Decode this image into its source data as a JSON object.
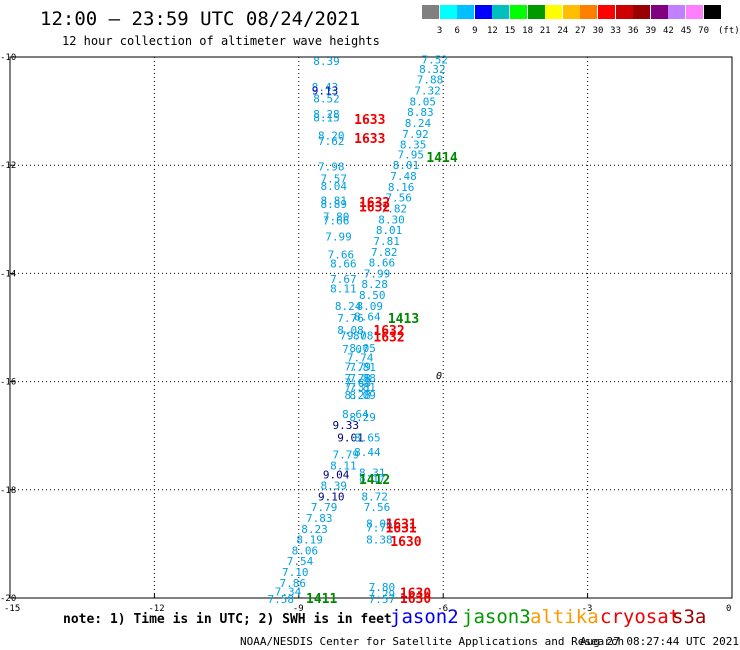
{
  "title": "12:00 – 23:59 UTC 08/24/2021",
  "subtitle": "12 hour collection of altimeter wave heights",
  "legend": {
    "colors": [
      "#808080",
      "#00ffff",
      "#00bfff",
      "#0000ff",
      "#00bfbf",
      "#00ff00",
      "#009900",
      "#ffff00",
      "#ffbf00",
      "#ff8000",
      "#ff0000",
      "#cc0000",
      "#990000",
      "#800080",
      "#c080ff",
      "#ff80ff",
      "#000000"
    ],
    "labels": [
      "3",
      "6",
      "9",
      "12",
      "15",
      "18",
      "21",
      "24",
      "27",
      "30",
      "33",
      "36",
      "39",
      "42",
      "45",
      "70"
    ],
    "unit": "(ft)"
  },
  "axes": {
    "lon_ticks": [
      "-15",
      "-12",
      "-9",
      "-6",
      "-3",
      "0"
    ],
    "lat_ticks": [
      "-10",
      "-12",
      "-14",
      "-16",
      "-18",
      "-20"
    ]
  },
  "symbols": {
    "zero_marker": "0"
  },
  "tracks": [
    {
      "id": "cyan-west",
      "observations": [
        {
          "value": "8.39",
          "lon": -8.7,
          "lat": -10.07,
          "color": "#00a0e0"
        },
        {
          "value": "8.43",
          "lon": -8.73,
          "lat": -10.55,
          "color": "#00a0e0"
        },
        {
          "value": "9.13",
          "lon": -8.73,
          "lat": -10.62,
          "color": "#0000c0"
        },
        {
          "value": "8.52",
          "lon": -8.7,
          "lat": -10.77,
          "color": "#00a0e0"
        },
        {
          "value": "8.28",
          "lon": -8.7,
          "lat": -11.05,
          "color": "#00a0e0"
        },
        {
          "value": "8.15",
          "lon": -8.7,
          "lat": -11.12,
          "color": "#00a0e0"
        },
        {
          "value": "8.20",
          "lon": -8.6,
          "lat": -11.45,
          "color": "#00a0e0"
        },
        {
          "value": "7.62",
          "lon": -8.6,
          "lat": -11.55,
          "color": "#00a0e0"
        },
        {
          "value": "7.98",
          "lon": -8.6,
          "lat": -12.02,
          "color": "#00a0e0"
        },
        {
          "value": "7.57",
          "lon": -8.55,
          "lat": -12.25,
          "color": "#00a0e0"
        },
        {
          "value": "8.04",
          "lon": -8.55,
          "lat": -12.38,
          "color": "#00a0e0"
        },
        {
          "value": "8.81",
          "lon": -8.55,
          "lat": -12.65,
          "color": "#00a0e0"
        },
        {
          "value": "8.89",
          "lon": -8.55,
          "lat": -12.72,
          "color": "#00a0e0"
        },
        {
          "value": "7.80",
          "lon": -8.5,
          "lat": -12.95,
          "color": "#00a0e0"
        },
        {
          "value": "7.66",
          "lon": -8.5,
          "lat": -13.02,
          "color": "#00a0e0"
        },
        {
          "value": "7.99",
          "lon": -8.45,
          "lat": -13.32,
          "color": "#00a0e0"
        },
        {
          "value": "7.66",
          "lon": -8.4,
          "lat": -13.65,
          "color": "#00a0e0"
        },
        {
          "value": "8.66",
          "lon": -8.35,
          "lat": -13.82,
          "color": "#00a0e0"
        },
        {
          "value": "7.67",
          "lon": -8.35,
          "lat": -14.1,
          "color": "#00a0e0"
        },
        {
          "value": "8.11",
          "lon": -8.35,
          "lat": -14.28,
          "color": "#00a0e0"
        },
        {
          "value": "8.24",
          "lon": -8.25,
          "lat": -14.6,
          "color": "#00a0e0"
        },
        {
          "value": "7.76",
          "lon": -8.2,
          "lat": -14.82,
          "color": "#00a0e0"
        },
        {
          "value": "8.08",
          "lon": -8.2,
          "lat": -15.05,
          "color": "#00a0e0"
        },
        {
          "value": "7.87",
          "lon": -8.15,
          "lat": -15.15,
          "color": "#00a0e0"
        },
        {
          "value": "7.07",
          "lon": -8.1,
          "lat": -15.4,
          "color": "#00a0e0"
        },
        {
          "value": "7.79",
          "lon": -8.05,
          "lat": -15.72,
          "color": "#00a0e0"
        },
        {
          "value": "7.78",
          "lon": -8.05,
          "lat": -15.93,
          "color": "#00a0e0"
        },
        {
          "value": "7.68",
          "lon": -8.05,
          "lat": -16.02,
          "color": "#00a0e0"
        },
        {
          "value": "7.31",
          "lon": -8.05,
          "lat": -16.1,
          "color": "#00a0e0"
        },
        {
          "value": "8.28",
          "lon": -8.05,
          "lat": -16.25,
          "color": "#00a0e0"
        },
        {
          "value": "8.64",
          "lon": -8.1,
          "lat": -16.6,
          "color": "#00a0e0"
        },
        {
          "value": "9.33",
          "lon": -8.3,
          "lat": -16.8,
          "color": "#000080"
        },
        {
          "value": "9.01",
          "lon": -8.2,
          "lat": -17.03,
          "color": "#000080"
        },
        {
          "value": "7.79",
          "lon": -8.3,
          "lat": -17.35,
          "color": "#00a0e0"
        },
        {
          "value": "8.11",
          "lon": -8.35,
          "lat": -17.55,
          "color": "#00a0e0"
        },
        {
          "value": "9.04",
          "lon": -8.5,
          "lat": -17.72,
          "color": "#000080"
        },
        {
          "value": "8.39",
          "lon": -8.55,
          "lat": -17.92,
          "color": "#00a0e0"
        },
        {
          "value": "9.10",
          "lon": -8.6,
          "lat": -18.12,
          "color": "#000080"
        },
        {
          "value": "7.79",
          "lon": -8.75,
          "lat": -18.32,
          "color": "#00a0e0"
        },
        {
          "value": "7.83",
          "lon": -8.85,
          "lat": -18.52,
          "color": "#00a0e0"
        },
        {
          "value": "8.23",
          "lon": -8.95,
          "lat": -18.72,
          "color": "#00a0e0"
        },
        {
          "value": "8.19",
          "lon": -9.05,
          "lat": -18.92,
          "color": "#00a0e0"
        },
        {
          "value": "8.06",
          "lon": -9.15,
          "lat": -19.12,
          "color": "#00a0e0"
        },
        {
          "value": "7.54",
          "lon": -9.25,
          "lat": -19.32,
          "color": "#00a0e0"
        },
        {
          "value": "7.10",
          "lon": -9.35,
          "lat": -19.52,
          "color": "#00a0e0"
        },
        {
          "value": "7.86",
          "lon": -9.4,
          "lat": -19.72,
          "color": "#00a0e0"
        },
        {
          "value": "7.34",
          "lon": -9.5,
          "lat": -19.88,
          "color": "#00a0e0"
        },
        {
          "value": "7.58",
          "lon": -9.65,
          "lat": -20.02,
          "color": "#00a0e0"
        }
      ]
    },
    {
      "id": "cyan-east",
      "observations": [
        {
          "value": "7.52",
          "lon": -6.45,
          "lat": -10.05,
          "color": "#00a0e0"
        },
        {
          "value": "8.32",
          "lon": -6.5,
          "lat": -10.22,
          "color": "#00a0e0"
        },
        {
          "value": "7.88",
          "lon": -6.55,
          "lat": -10.42,
          "color": "#00a0e0"
        },
        {
          "value": "7.32",
          "lon": -6.6,
          "lat": -10.62,
          "color": "#00a0e0"
        },
        {
          "value": "8.05",
          "lon": -6.7,
          "lat": -10.82,
          "color": "#00a0e0"
        },
        {
          "value": "8.83",
          "lon": -6.75,
          "lat": -11.02,
          "color": "#00a0e0"
        },
        {
          "value": "8.24",
          "lon": -6.8,
          "lat": -11.22,
          "color": "#00a0e0"
        },
        {
          "value": "7.92",
          "lon": -6.85,
          "lat": -11.42,
          "color": "#00a0e0"
        },
        {
          "value": "8.35",
          "lon": -6.9,
          "lat": -11.62,
          "color": "#00a0e0"
        },
        {
          "value": "7.95",
          "lon": -6.95,
          "lat": -11.8,
          "color": "#00a0e0"
        },
        {
          "value": "8.01",
          "lon": -7.05,
          "lat": -12.0,
          "color": "#00a0e0"
        },
        {
          "value": "7.48",
          "lon": -7.1,
          "lat": -12.2,
          "color": "#00a0e0"
        },
        {
          "value": "8.16",
          "lon": -7.15,
          "lat": -12.4,
          "color": "#00a0e0"
        },
        {
          "value": "7.56",
          "lon": -7.2,
          "lat": -12.6,
          "color": "#00a0e0"
        },
        {
          "value": "7.82",
          "lon": -7.3,
          "lat": -12.8,
          "color": "#00a0e0"
        },
        {
          "value": "8.30",
          "lon": -7.35,
          "lat": -13.0,
          "color": "#00a0e0"
        },
        {
          "value": "8.01",
          "lon": -7.4,
          "lat": -13.2,
          "color": "#00a0e0"
        },
        {
          "value": "7.81",
          "lon": -7.45,
          "lat": -13.4,
          "color": "#00a0e0"
        },
        {
          "value": "7.82",
          "lon": -7.5,
          "lat": -13.6,
          "color": "#00a0e0"
        },
        {
          "value": "8.66",
          "lon": -7.55,
          "lat": -13.8,
          "color": "#00a0e0"
        },
        {
          "value": "7.99",
          "lon": -7.65,
          "lat": -14.0,
          "color": "#00a0e0"
        },
        {
          "value": "8.28",
          "lon": -7.7,
          "lat": -14.2,
          "color": "#00a0e0"
        },
        {
          "value": "8.50",
          "lon": -7.75,
          "lat": -14.4,
          "color": "#00a0e0"
        },
        {
          "value": "8.09",
          "lon": -7.8,
          "lat": -14.6,
          "color": "#00a0e0"
        },
        {
          "value": "8.64",
          "lon": -7.85,
          "lat": -14.8,
          "color": "#00a0e0"
        },
        {
          "value": "9.08",
          "lon": -8.0,
          "lat": -15.15,
          "color": "#00a0e0"
        },
        {
          "value": "8.05",
          "lon": -7.95,
          "lat": -15.38,
          "color": "#00a0e0"
        },
        {
          "value": "7.74",
          "lon": -8.0,
          "lat": -15.55,
          "color": "#00a0e0"
        },
        {
          "value": "7.81",
          "lon": -7.95,
          "lat": -15.73,
          "color": "#00a0e0"
        },
        {
          "value": "7.88",
          "lon": -7.95,
          "lat": -15.93,
          "color": "#00a0e0"
        },
        {
          "value": "7.81",
          "lon": -7.95,
          "lat": -16.1,
          "color": "#00a0e0"
        },
        {
          "value": "8.09",
          "lon": -7.95,
          "lat": -16.25,
          "color": "#00a0e0"
        },
        {
          "value": "8.29",
          "lon": -7.95,
          "lat": -16.65,
          "color": "#00a0e0"
        },
        {
          "value": "8.65",
          "lon": -7.85,
          "lat": -17.03,
          "color": "#00a0e0"
        },
        {
          "value": "8.44",
          "lon": -7.85,
          "lat": -17.3,
          "color": "#00a0e0"
        },
        {
          "value": "8.31",
          "lon": -7.75,
          "lat": -17.68,
          "color": "#00a0e0"
        },
        {
          "value": "8.17",
          "lon": -7.75,
          "lat": -17.78,
          "color": "#00a0e0"
        },
        {
          "value": "8.72",
          "lon": -7.7,
          "lat": -18.12,
          "color": "#00a0e0"
        },
        {
          "value": "7.56",
          "lon": -7.65,
          "lat": -18.32,
          "color": "#00a0e0"
        }
      ]
    },
    {
      "id": "cyan-south-east",
      "observations": [
        {
          "value": "8.06",
          "lon": -7.6,
          "lat": -18.62,
          "color": "#00a0e0"
        },
        {
          "value": "7.71",
          "lon": -7.6,
          "lat": -18.7,
          "color": "#00a0e0"
        },
        {
          "value": "8.38",
          "lon": -7.6,
          "lat": -18.92,
          "color": "#00a0e0"
        },
        {
          "value": "7.80",
          "lon": -7.55,
          "lat": -19.8,
          "color": "#00a0e0"
        },
        {
          "value": "7.29",
          "lon": -7.55,
          "lat": -19.93,
          "color": "#00a0e0"
        },
        {
          "value": "7.57",
          "lon": -7.55,
          "lat": -20.02,
          "color": "#00a0e0"
        }
      ]
    }
  ],
  "pass_labels": [
    {
      "text": "1633",
      "lon": -7.85,
      "lat": -11.15,
      "color": "#ee0000"
    },
    {
      "text": "1633",
      "lon": -7.85,
      "lat": -11.5,
      "color": "#ee0000"
    },
    {
      "text": "1414",
      "lon": -6.35,
      "lat": -11.85,
      "color": "#008800"
    },
    {
      "text": "1632",
      "lon": -7.75,
      "lat": -12.68,
      "color": "#ee0000"
    },
    {
      "text": "1632",
      "lon": -7.75,
      "lat": -12.76,
      "color": "#ee0000"
    },
    {
      "text": "1413",
      "lon": -7.15,
      "lat": -14.82,
      "color": "#008800"
    },
    {
      "text": "1632",
      "lon": -7.45,
      "lat": -15.05,
      "color": "#ee0000"
    },
    {
      "text": "1632",
      "lon": -7.45,
      "lat": -15.17,
      "color": "#ee0000"
    },
    {
      "text": "1412",
      "lon": -7.75,
      "lat": -17.8,
      "color": "#008800"
    },
    {
      "text": "1631",
      "lon": -7.2,
      "lat": -18.62,
      "color": "#ee0000"
    },
    {
      "text": "1631",
      "lon": -7.2,
      "lat": -18.7,
      "color": "#ee0000"
    },
    {
      "text": "1630",
      "lon": -7.1,
      "lat": -18.95,
      "color": "#ee0000"
    },
    {
      "text": "1411",
      "lon": -8.85,
      "lat": -20.0,
      "color": "#008800"
    },
    {
      "text": "1630",
      "lon": -6.9,
      "lat": -19.9,
      "color": "#ee0000"
    },
    {
      "text": "1630",
      "lon": -6.9,
      "lat": -20.0,
      "color": "#ee0000"
    }
  ],
  "note": "note: 1) Time is in UTC; 2) SWH is in feet",
  "satellites": [
    {
      "name": "jason2",
      "color": "#0000ee"
    },
    {
      "name": "jason3",
      "color": "#009900"
    },
    {
      "name": "altika",
      "color": "#ff9900"
    },
    {
      "name": "cryosat",
      "color": "#ee0000"
    },
    {
      "name": "s3a",
      "color": "#990000"
    }
  ],
  "footer": {
    "credit": "NOAA/NESDIS Center for Satellite Applications and Research",
    "timestamp": "Aug 27 08:27:44 UTC 2021"
  }
}
